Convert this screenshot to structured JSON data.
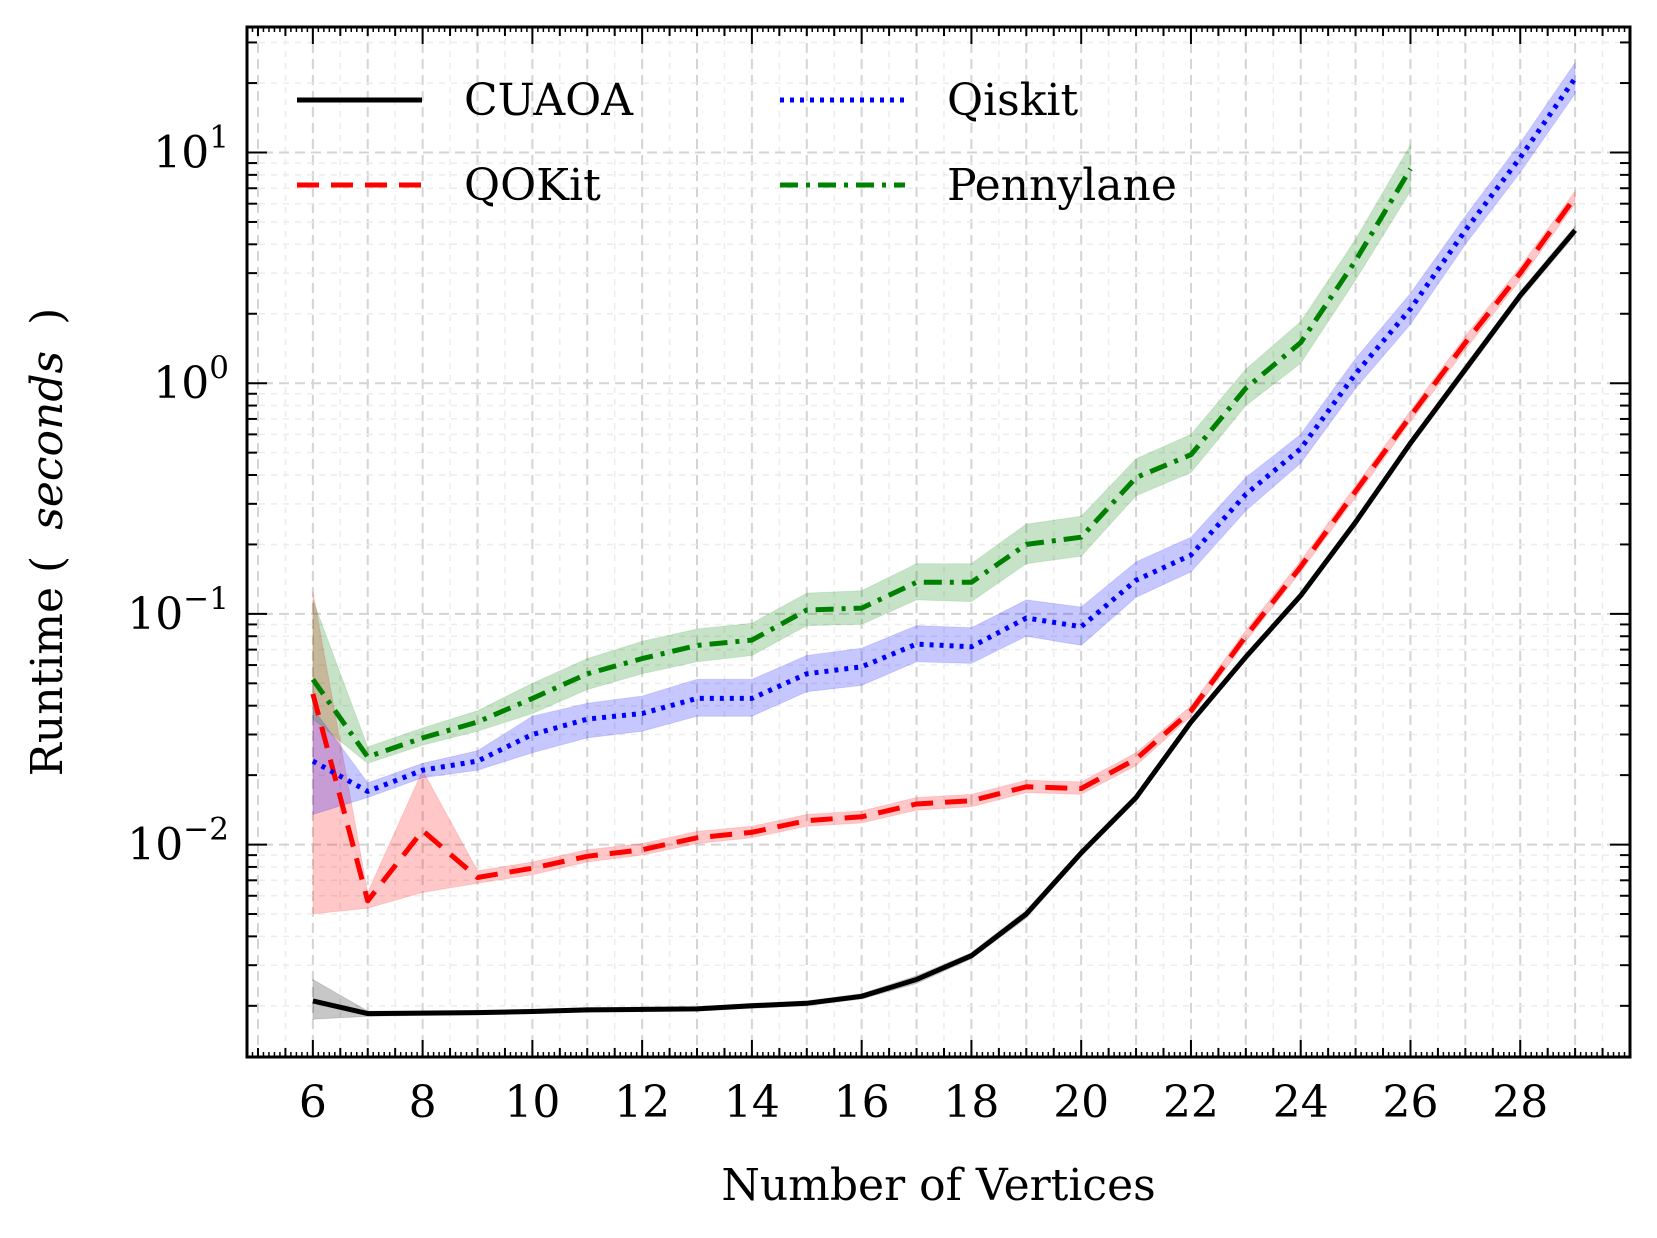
{
  "chart_data": {
    "type": "line",
    "xlabel": "Number of Vertices",
    "ylabel_main": "Runtime (",
    "ylabel_unit": "seconds",
    "ylabel_close": ")",
    "xlim": [
      4.8,
      30.0
    ],
    "ylim": [
      0.0012,
      35
    ],
    "yscale": "log",
    "grid": true,
    "legend": "top-left, 2 columns",
    "x_ticks": [
      6,
      8,
      10,
      12,
      14,
      16,
      18,
      20,
      22,
      24,
      26,
      28
    ],
    "x_tick_labels": [
      "6",
      "8",
      "10",
      "12",
      "14",
      "16",
      "18",
      "20",
      "22",
      "24",
      "26",
      "28"
    ],
    "y_ticks": [
      {
        "value": 0.01,
        "base": "10",
        "exp": "−2"
      },
      {
        "value": 0.1,
        "base": "10",
        "exp": "−1"
      },
      {
        "value": 1,
        "base": "10",
        "exp": "0"
      },
      {
        "value": 10,
        "base": "10",
        "exp": "1"
      }
    ],
    "series": [
      {
        "name": "CUAOA",
        "color": "#000000",
        "style": "solid",
        "x": [
          6,
          7,
          8,
          9,
          10,
          11,
          12,
          13,
          14,
          15,
          16,
          17,
          18,
          19,
          20,
          21,
          22,
          23,
          24,
          25,
          26,
          27,
          28,
          29
        ],
        "y": [
          0.0021,
          0.00185,
          0.00186,
          0.00187,
          0.00189,
          0.00192,
          0.00193,
          0.00194,
          0.002,
          0.00205,
          0.0022,
          0.0026,
          0.0033,
          0.005,
          0.0092,
          0.016,
          0.034,
          0.065,
          0.12,
          0.25,
          0.55,
          1.15,
          2.4,
          4.6
        ],
        "lower": [
          0.00175,
          0.0018,
          0.00182,
          0.00183,
          0.00185,
          0.00188,
          0.00189,
          0.0019,
          0.00195,
          0.002,
          0.00214,
          0.0025,
          0.0032,
          0.0048,
          0.0089,
          0.0155,
          0.033,
          0.063,
          0.116,
          0.24,
          0.53,
          1.1,
          2.3,
          4.4
        ],
        "upper": [
          0.0026,
          0.0019,
          0.0019,
          0.00191,
          0.00193,
          0.00196,
          0.00197,
          0.00198,
          0.00205,
          0.0021,
          0.00226,
          0.0027,
          0.0034,
          0.0052,
          0.0095,
          0.0165,
          0.035,
          0.067,
          0.124,
          0.26,
          0.57,
          1.2,
          2.5,
          4.8
        ]
      },
      {
        "name": "QOKit",
        "color": "#ff0000",
        "style": "dashed",
        "x": [
          6,
          7,
          8,
          9,
          10,
          11,
          12,
          13,
          14,
          15,
          16,
          17,
          18,
          19,
          20,
          21,
          22,
          23,
          24,
          25,
          26,
          27,
          28,
          29
        ],
        "y": [
          0.045,
          0.0057,
          0.0115,
          0.0072,
          0.0079,
          0.0089,
          0.0095,
          0.0107,
          0.0113,
          0.0127,
          0.0132,
          0.015,
          0.0155,
          0.0178,
          0.0175,
          0.0235,
          0.038,
          0.08,
          0.16,
          0.34,
          0.72,
          1.5,
          3.0,
          6.4
        ],
        "lower": [
          0.005,
          0.0053,
          0.0062,
          0.0068,
          0.0074,
          0.0084,
          0.009,
          0.0101,
          0.0107,
          0.012,
          0.0124,
          0.0141,
          0.0146,
          0.0168,
          0.0165,
          0.022,
          0.036,
          0.076,
          0.152,
          0.32,
          0.68,
          1.4,
          2.8,
          6.0
        ],
        "upper": [
          0.125,
          0.0062,
          0.021,
          0.0077,
          0.0084,
          0.0095,
          0.0101,
          0.0114,
          0.012,
          0.0135,
          0.014,
          0.016,
          0.0165,
          0.019,
          0.0187,
          0.025,
          0.04,
          0.085,
          0.17,
          0.36,
          0.76,
          1.6,
          3.2,
          6.8
        ]
      },
      {
        "name": "Qiskit",
        "color": "#0000ff",
        "style": "dotted",
        "x": [
          6,
          7,
          8,
          9,
          10,
          11,
          12,
          13,
          14,
          15,
          16,
          17,
          18,
          19,
          20,
          21,
          22,
          23,
          24,
          25,
          26,
          27,
          28,
          29
        ],
        "y": [
          0.023,
          0.017,
          0.021,
          0.023,
          0.03,
          0.035,
          0.037,
          0.043,
          0.043,
          0.055,
          0.059,
          0.074,
          0.072,
          0.096,
          0.088,
          0.14,
          0.18,
          0.33,
          0.52,
          1.1,
          2.1,
          4.6,
          9.5,
          21.0
        ],
        "lower": [
          0.0135,
          0.016,
          0.0195,
          0.021,
          0.025,
          0.029,
          0.031,
          0.036,
          0.036,
          0.046,
          0.049,
          0.062,
          0.061,
          0.08,
          0.073,
          0.118,
          0.152,
          0.28,
          0.45,
          0.95,
          1.8,
          4.0,
          8.2,
          18.0
        ],
        "upper": [
          0.039,
          0.0185,
          0.0225,
          0.0255,
          0.036,
          0.041,
          0.044,
          0.052,
          0.052,
          0.066,
          0.071,
          0.089,
          0.087,
          0.115,
          0.107,
          0.168,
          0.215,
          0.39,
          0.6,
          1.28,
          2.45,
          5.3,
          11.0,
          24.5
        ]
      },
      {
        "name": "Pennylane",
        "color": "#008000",
        "style": "dashdot",
        "x": [
          6,
          7,
          8,
          9,
          10,
          11,
          12,
          13,
          14,
          15,
          16,
          17,
          18,
          19,
          20,
          21,
          22,
          23,
          24,
          25,
          26
        ],
        "y": [
          0.052,
          0.024,
          0.029,
          0.034,
          0.043,
          0.055,
          0.064,
          0.073,
          0.077,
          0.104,
          0.106,
          0.137,
          0.137,
          0.2,
          0.215,
          0.39,
          0.49,
          0.95,
          1.5,
          3.4,
          8.5
        ],
        "lower": [
          0.035,
          0.0225,
          0.027,
          0.031,
          0.037,
          0.047,
          0.055,
          0.062,
          0.066,
          0.089,
          0.09,
          0.115,
          0.113,
          0.165,
          0.178,
          0.325,
          0.41,
          0.8,
          1.22,
          2.8,
          6.8
        ],
        "upper": [
          0.115,
          0.0265,
          0.032,
          0.038,
          0.05,
          0.064,
          0.076,
          0.086,
          0.091,
          0.123,
          0.126,
          0.165,
          0.165,
          0.245,
          0.265,
          0.47,
          0.6,
          1.15,
          1.85,
          4.2,
          10.8
        ]
      }
    ]
  }
}
